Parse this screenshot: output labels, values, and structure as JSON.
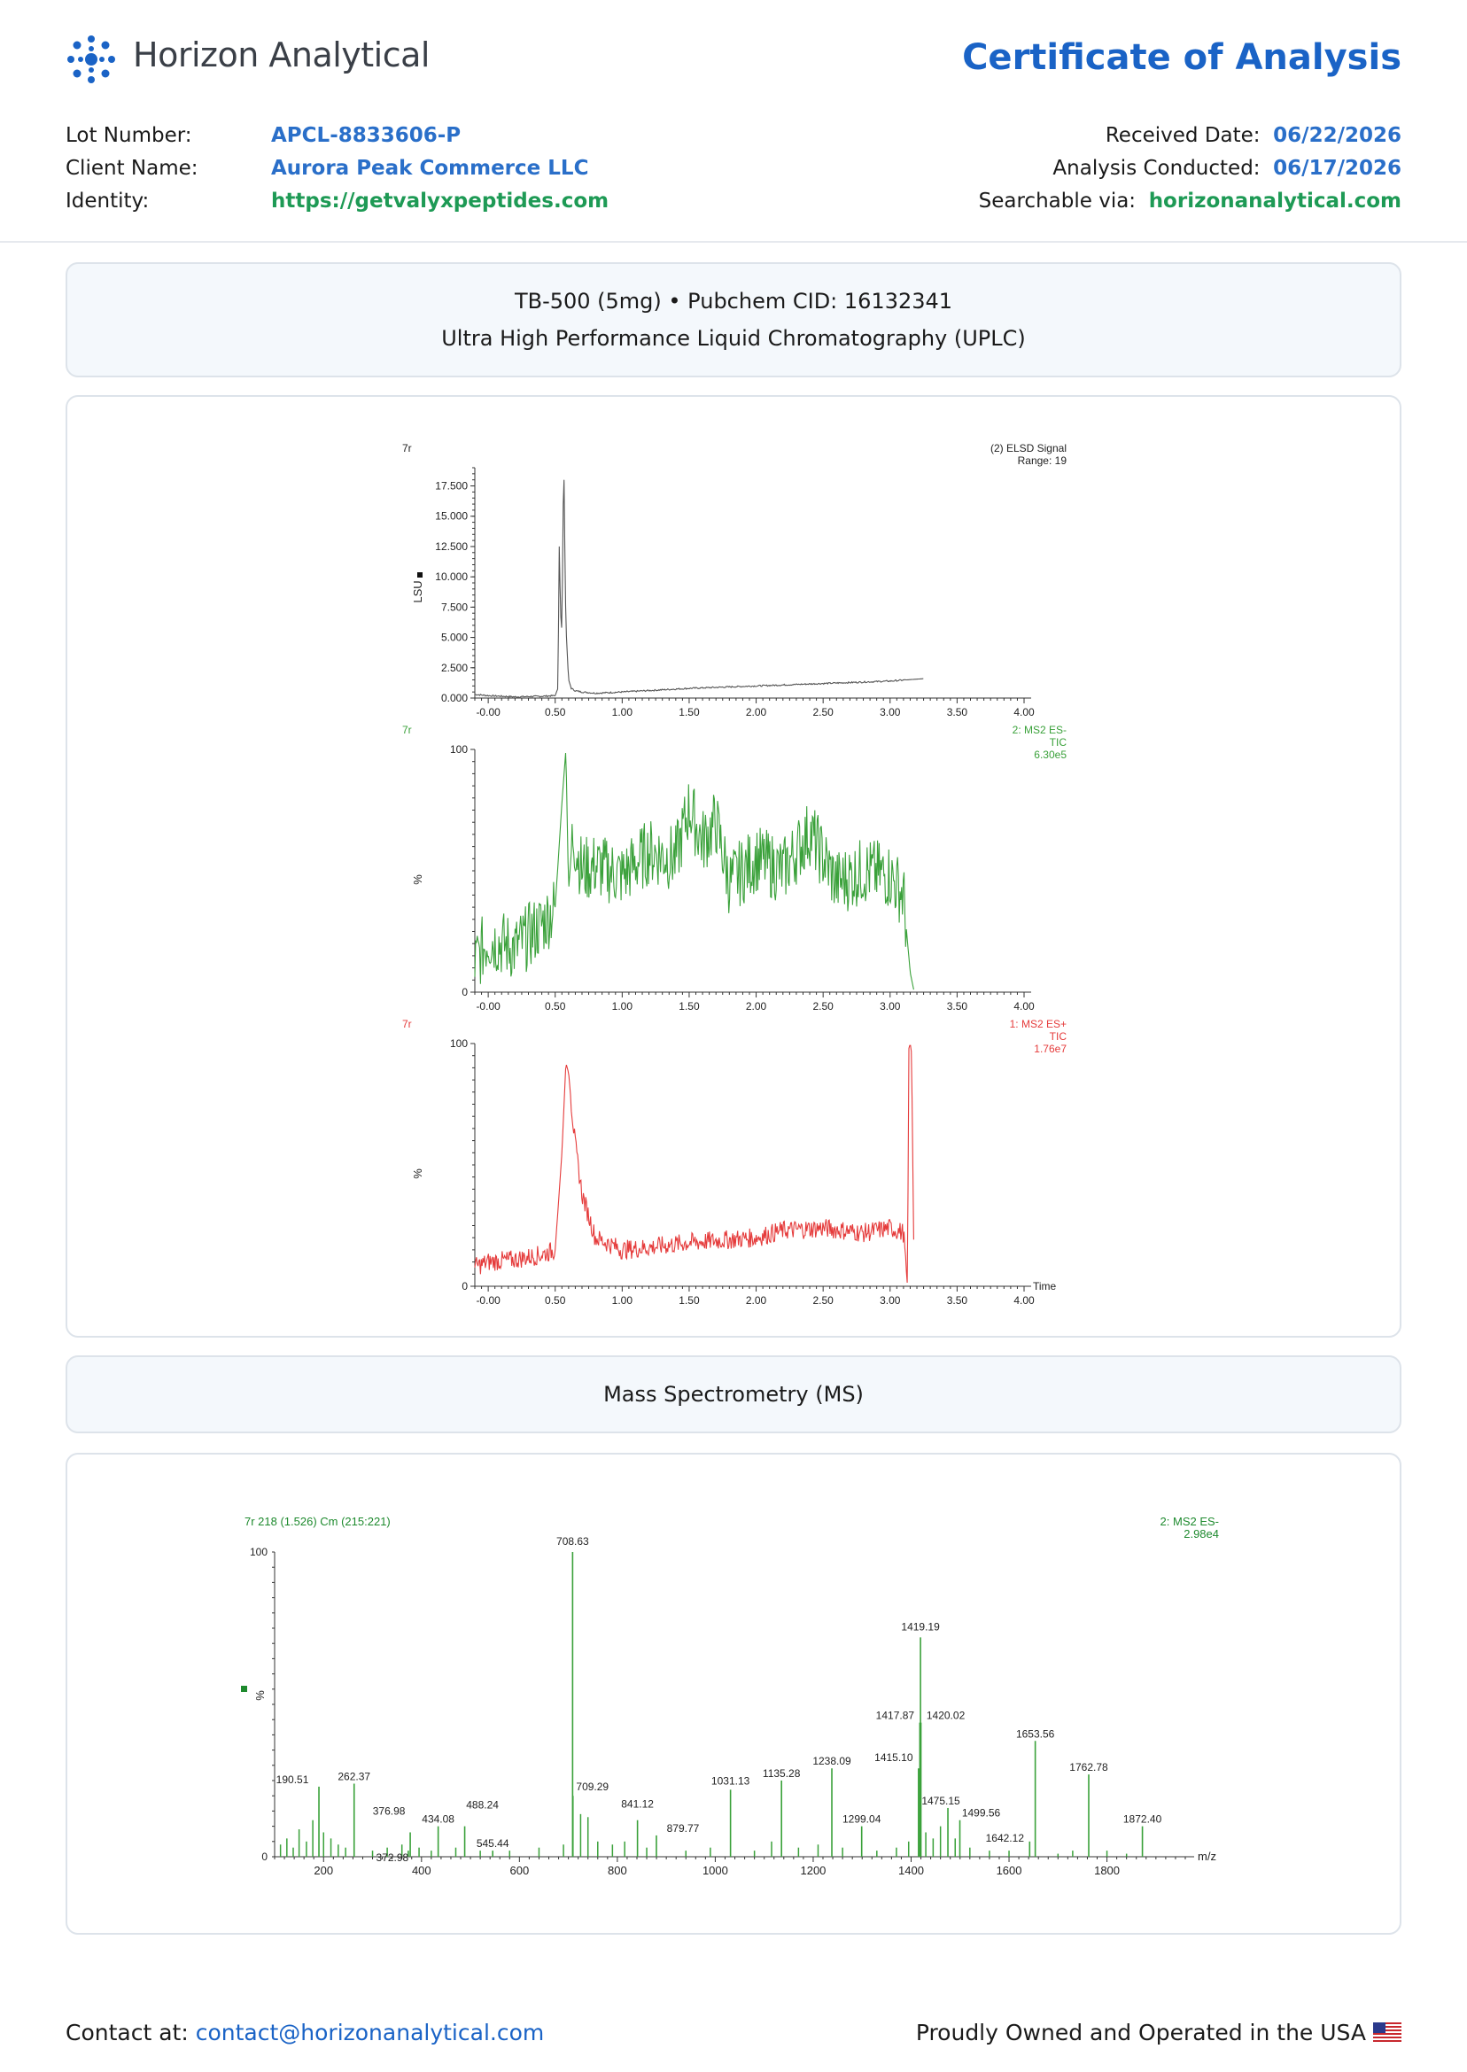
{
  "header": {
    "brand": "Horizon Analytical",
    "title": "Certificate of Analysis",
    "colors": {
      "accent": "#1a63c6",
      "green": "#1e9a55"
    }
  },
  "info_left": [
    {
      "label": "Lot Number:",
      "value": "APCL-8833606-P",
      "color": "blue"
    },
    {
      "label": "Client Name:",
      "value": "Aurora Peak Commerce LLC",
      "color": "blue"
    },
    {
      "label": "Identity:",
      "value": "https://getvalyxpeptides.com",
      "color": "green"
    }
  ],
  "info_right": [
    {
      "label": "Received Date:",
      "value": "06/22/2026",
      "color": "blue"
    },
    {
      "label": "Analysis Conducted:",
      "value": "06/17/2026",
      "color": "blue"
    },
    {
      "label": "Searchable via:",
      "value": "horizonanalytical.com",
      "color": "green"
    }
  ],
  "uplc_section": {
    "line1": "TB-500 (5mg) • Pubchem CID: 16132341",
    "line2": "Ultra High Performance Liquid Chromatography (UPLC)"
  },
  "ms_section": {
    "title": "Mass Spectrometry (MS)"
  },
  "chart_data": [
    {
      "type": "line",
      "trace_id": "7r",
      "title": "(2) ELSD Signal",
      "subtitle": "Range: 19",
      "ylabel": "LSU",
      "xlim": [
        -0.1,
        4.0
      ],
      "ylim": [
        0,
        19
      ],
      "x_ticks": [
        "-0.00",
        "0.50",
        "1.00",
        "1.50",
        "2.00",
        "2.50",
        "3.00",
        "3.50",
        "4.00"
      ],
      "y_ticks": [
        "0.000",
        "2.500",
        "5.000",
        "7.500",
        "10.000",
        "12.500",
        "15.000",
        "17.500"
      ],
      "color": "#555555",
      "x": [
        -0.1,
        0.0,
        0.2,
        0.4,
        0.5,
        0.52,
        0.53,
        0.54,
        0.55,
        0.56,
        0.565,
        0.57,
        0.58,
        0.6,
        0.62,
        0.65,
        0.7,
        0.8,
        1.0,
        1.5,
        2.0,
        2.5,
        3.0,
        3.25
      ],
      "y": [
        0.3,
        0.2,
        0.1,
        0.15,
        0.2,
        0.8,
        12.5,
        7.0,
        5.5,
        16.0,
        19.0,
        14.0,
        6.0,
        1.5,
        0.8,
        0.6,
        0.5,
        0.4,
        0.5,
        0.8,
        1.0,
        1.2,
        1.4,
        1.6
      ]
    },
    {
      "type": "line",
      "trace_id": "7r",
      "title": "2: MS2 ES-",
      "subtitle": "TIC",
      "scale": "6.30e5",
      "ylabel": "%",
      "xlim": [
        -0.1,
        4.0
      ],
      "ylim": [
        0,
        100
      ],
      "x_ticks": [
        "-0.00",
        "0.50",
        "1.00",
        "1.50",
        "2.00",
        "2.50",
        "3.00",
        "3.50",
        "4.00"
      ],
      "y_ticks": [
        "0",
        "100"
      ],
      "color": "#3aa13a",
      "x": [
        -0.1,
        0.0,
        0.2,
        0.4,
        0.5,
        0.55,
        0.58,
        0.6,
        0.63,
        0.7,
        0.8,
        1.0,
        1.2,
        1.4,
        1.5,
        1.6,
        1.7,
        1.8,
        2.0,
        2.2,
        2.4,
        2.6,
        2.8,
        3.0,
        3.1,
        3.15,
        3.18
      ],
      "y": [
        12,
        22,
        18,
        28,
        35,
        78,
        100,
        42,
        65,
        50,
        52,
        48,
        58,
        55,
        76,
        62,
        70,
        45,
        55,
        50,
        66,
        45,
        50,
        48,
        40,
        8,
        0
      ]
    },
    {
      "type": "line",
      "trace_id": "7r",
      "title": "1: MS2 ES+",
      "subtitle": "TIC",
      "scale": "1.76e7",
      "ylabel": "%",
      "xlabel": "Time",
      "xlim": [
        -0.1,
        4.0
      ],
      "ylim": [
        0,
        100
      ],
      "x_ticks": [
        "-0.00",
        "0.50",
        "1.00",
        "1.50",
        "2.00",
        "2.50",
        "3.00",
        "3.50",
        "4.00"
      ],
      "y_ticks": [
        "0",
        "100"
      ],
      "color": "#e53b3b",
      "x": [
        -0.1,
        0.0,
        0.2,
        0.4,
        0.5,
        0.55,
        0.58,
        0.6,
        0.62,
        0.65,
        0.7,
        0.8,
        1.0,
        1.2,
        1.5,
        2.0,
        2.2,
        2.5,
        2.8,
        3.0,
        3.1,
        3.13,
        3.14,
        3.15,
        3.16,
        3.18
      ],
      "y": [
        8,
        10,
        11,
        13,
        15,
        55,
        92,
        88,
        75,
        58,
        38,
        20,
        15,
        16,
        18,
        20,
        23,
        24,
        22,
        24,
        22,
        0,
        98,
        100,
        96,
        0
      ]
    },
    {
      "type": "bar",
      "title": "7r 218 (1.526) Cm (215:221)",
      "series_title": "2: MS2 ES-",
      "scale": "2.98e4",
      "ylabel": "%",
      "xlabel": "m/z",
      "xlim": [
        100,
        1960
      ],
      "ylim": [
        0,
        100
      ],
      "x_ticks": [
        "200",
        "400",
        "600",
        "800",
        "1000",
        "1200",
        "1400",
        "1600",
        "1800"
      ],
      "y_ticks": [
        "0",
        "100"
      ],
      "color": "#3aa13a",
      "labeled_peaks": [
        {
          "mz": 190.51,
          "intensity": 23,
          "label": "190.51"
        },
        {
          "mz": 262.37,
          "intensity": 24,
          "label": "262.37"
        },
        {
          "mz": 372.98,
          "intensity": 2,
          "label": "372.98"
        },
        {
          "mz": 376.98,
          "intensity": 8,
          "label": "376.98"
        },
        {
          "mz": 434.08,
          "intensity": 10,
          "label": "434.08"
        },
        {
          "mz": 488.24,
          "intensity": 10,
          "label": "488.24"
        },
        {
          "mz": 545.44,
          "intensity": 2,
          "label": "545.44"
        },
        {
          "mz": 708.63,
          "intensity": 100,
          "label": "708.63"
        },
        {
          "mz": 709.29,
          "intensity": 20,
          "label": "709.29"
        },
        {
          "mz": 841.12,
          "intensity": 12,
          "label": "841.12"
        },
        {
          "mz": 879.77,
          "intensity": 7,
          "label": "879.77"
        },
        {
          "mz": 1031.13,
          "intensity": 22,
          "label": "1031.13"
        },
        {
          "mz": 1135.28,
          "intensity": 25,
          "label": "1135.28"
        },
        {
          "mz": 1238.09,
          "intensity": 29,
          "label": "1238.09"
        },
        {
          "mz": 1299.04,
          "intensity": 10,
          "label": "1299.04"
        },
        {
          "mz": 1415.1,
          "intensity": 29,
          "label": "1415.10"
        },
        {
          "mz": 1417.87,
          "intensity": 44,
          "label": "1417.87"
        },
        {
          "mz": 1419.19,
          "intensity": 72,
          "label": "1419.19"
        },
        {
          "mz": 1420.02,
          "intensity": 44,
          "label": "1420.02"
        },
        {
          "mz": 1475.15,
          "intensity": 16,
          "label": "1475.15"
        },
        {
          "mz": 1499.56,
          "intensity": 12,
          "label": "1499.56"
        },
        {
          "mz": 1642.12,
          "intensity": 5,
          "label": "1642.12"
        },
        {
          "mz": 1653.56,
          "intensity": 38,
          "label": "1653.56"
        },
        {
          "mz": 1762.78,
          "intensity": 27,
          "label": "1762.78"
        },
        {
          "mz": 1872.4,
          "intensity": 10,
          "label": "1872.40"
        }
      ],
      "minor_peaks": [
        {
          "mz": 112,
          "intensity": 4
        },
        {
          "mz": 125,
          "intensity": 6
        },
        {
          "mz": 138,
          "intensity": 3
        },
        {
          "mz": 150,
          "intensity": 9
        },
        {
          "mz": 165,
          "intensity": 5
        },
        {
          "mz": 178,
          "intensity": 12
        },
        {
          "mz": 200,
          "intensity": 8
        },
        {
          "mz": 215,
          "intensity": 6
        },
        {
          "mz": 230,
          "intensity": 4
        },
        {
          "mz": 245,
          "intensity": 3
        },
        {
          "mz": 300,
          "intensity": 2
        },
        {
          "mz": 330,
          "intensity": 3
        },
        {
          "mz": 360,
          "intensity": 4
        },
        {
          "mz": 395,
          "intensity": 3
        },
        {
          "mz": 420,
          "intensity": 2
        },
        {
          "mz": 470,
          "intensity": 3
        },
        {
          "mz": 520,
          "intensity": 2
        },
        {
          "mz": 580,
          "intensity": 2
        },
        {
          "mz": 640,
          "intensity": 3
        },
        {
          "mz": 690,
          "intensity": 4
        },
        {
          "mz": 725,
          "intensity": 14
        },
        {
          "mz": 740,
          "intensity": 13
        },
        {
          "mz": 760,
          "intensity": 5
        },
        {
          "mz": 790,
          "intensity": 4
        },
        {
          "mz": 815,
          "intensity": 5
        },
        {
          "mz": 860,
          "intensity": 3
        },
        {
          "mz": 940,
          "intensity": 2
        },
        {
          "mz": 990,
          "intensity": 3
        },
        {
          "mz": 1080,
          "intensity": 2
        },
        {
          "mz": 1115,
          "intensity": 5
        },
        {
          "mz": 1170,
          "intensity": 3
        },
        {
          "mz": 1210,
          "intensity": 4
        },
        {
          "mz": 1260,
          "intensity": 3
        },
        {
          "mz": 1330,
          "intensity": 2
        },
        {
          "mz": 1370,
          "intensity": 3
        },
        {
          "mz": 1395,
          "intensity": 5
        },
        {
          "mz": 1430,
          "intensity": 8
        },
        {
          "mz": 1445,
          "intensity": 6
        },
        {
          "mz": 1460,
          "intensity": 10
        },
        {
          "mz": 1490,
          "intensity": 6
        },
        {
          "mz": 1520,
          "intensity": 3
        },
        {
          "mz": 1560,
          "intensity": 2
        },
        {
          "mz": 1600,
          "intensity": 2
        },
        {
          "mz": 1700,
          "intensity": 1
        },
        {
          "mz": 1730,
          "intensity": 2
        },
        {
          "mz": 1800,
          "intensity": 2
        },
        {
          "mz": 1840,
          "intensity": 1
        }
      ]
    }
  ],
  "footer": {
    "contact_label": "Contact at:",
    "contact_email": "contact@horizonanalytical.com",
    "tagline": "Proudly Owned and Operated in the USA",
    "flag_icon": "us-flag-icon"
  }
}
